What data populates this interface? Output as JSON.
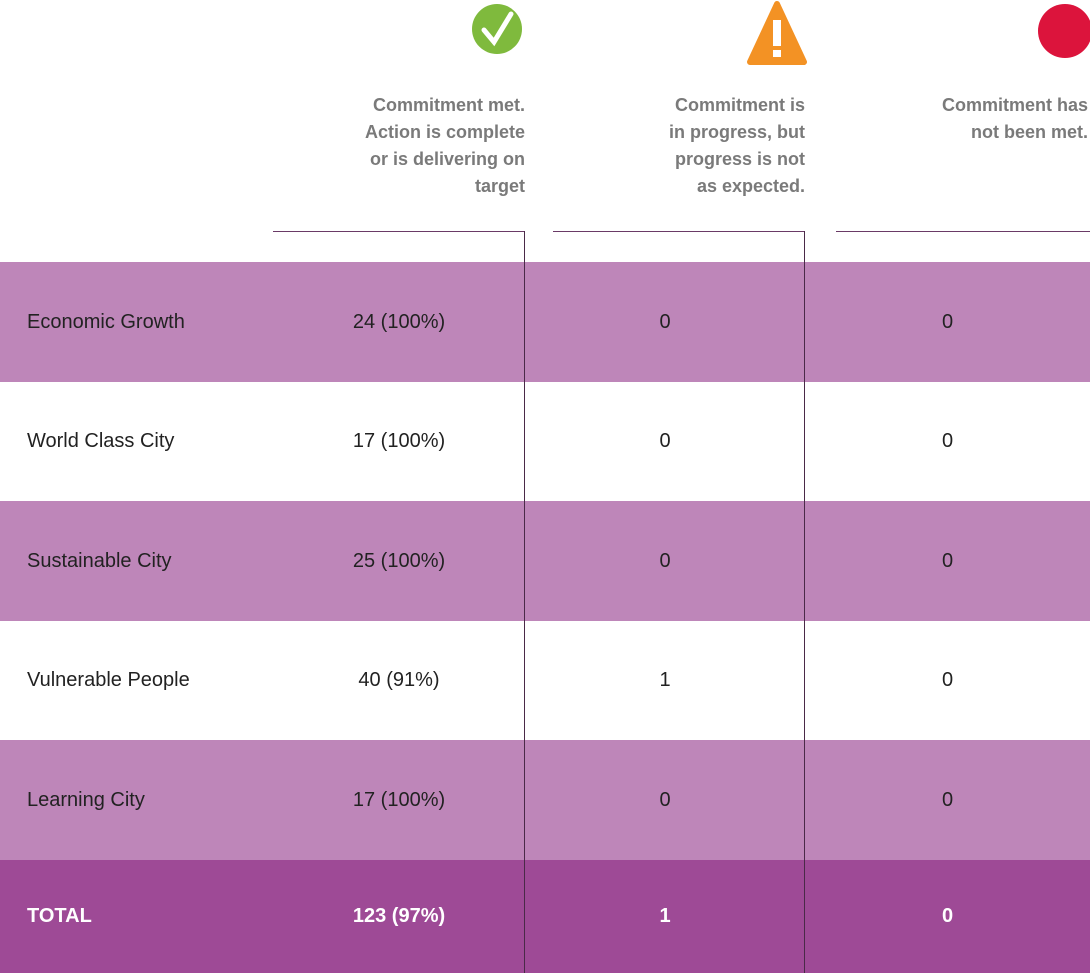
{
  "header": {
    "columns": [
      {
        "lines": [
          "Commitment met.",
          "Action is complete",
          "or is delivering on",
          "target"
        ]
      },
      {
        "lines": [
          "Commitment is",
          "in progress, but",
          "progress is not",
          "as expected."
        ]
      },
      {
        "lines": [
          "Commitment has",
          "not been met."
        ]
      }
    ]
  },
  "table": {
    "rows": [
      [
        "Economic Growth",
        "24 (100%)",
        "0",
        "0"
      ],
      [
        "World Class City",
        "17 (100%)",
        "0",
        "0"
      ],
      [
        "Sustainable City",
        "25 (100%)",
        "0",
        "0"
      ],
      [
        "Vulnerable People",
        "40 (91%)",
        "1",
        "0"
      ],
      [
        "Learning City",
        "17 (100%)",
        "0",
        "0"
      ]
    ],
    "total": [
      "TOTAL",
      "123 (97%)",
      "1",
      "0"
    ]
  }
}
